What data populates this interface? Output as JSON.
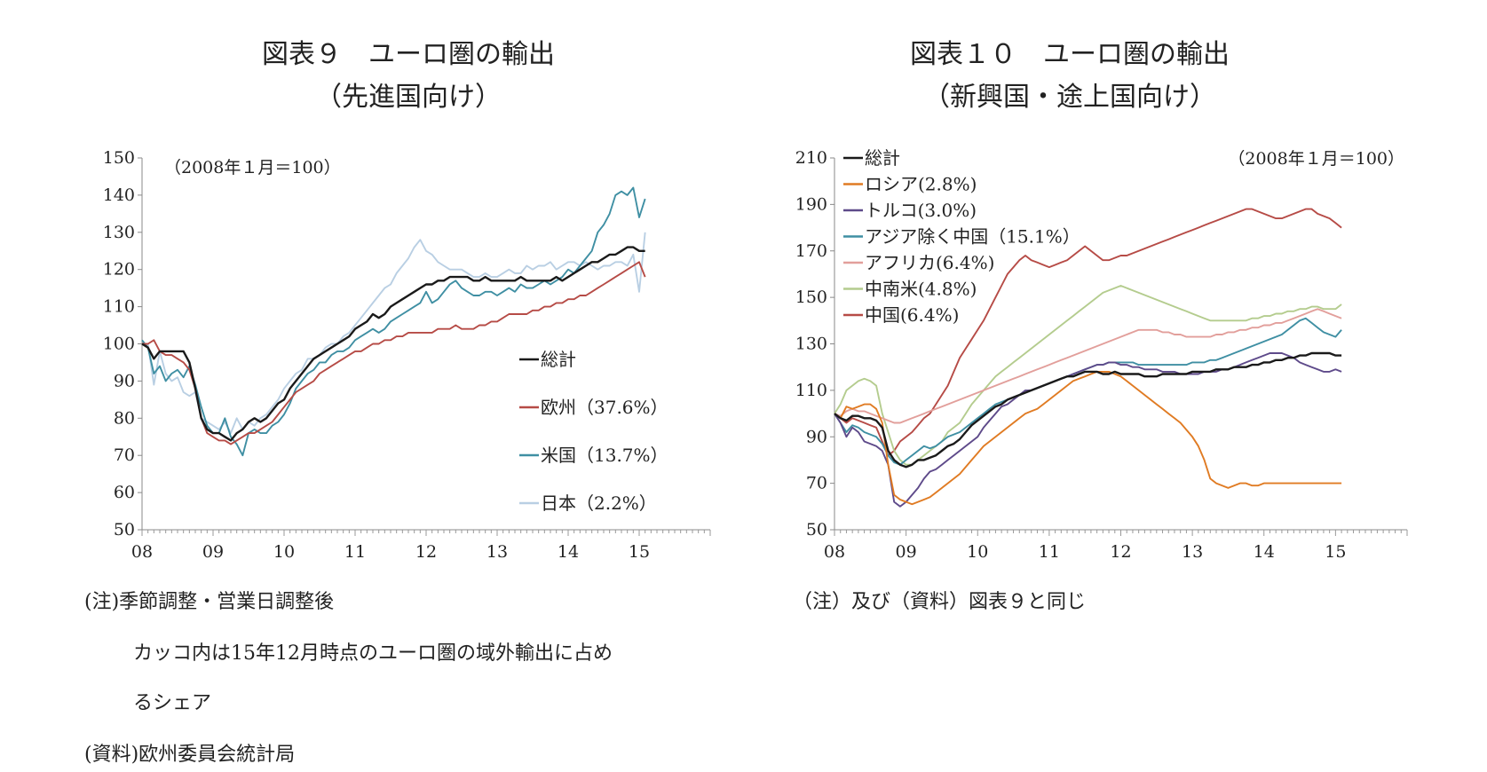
{
  "chart_data": [
    {
      "type": "line",
      "title": "図表９　ユーロ圏の輸出",
      "subtitle": "（先進国向け）",
      "annotation": "（2008年１月＝100）",
      "ylim": [
        50,
        150
      ],
      "yticks": [
        "150",
        "140",
        "130",
        "120",
        "110",
        "100",
        "90",
        "80",
        "70",
        "60",
        "50"
      ],
      "x_ticks": [
        "08",
        "09",
        "10",
        "11",
        "12",
        "13",
        "14",
        "15"
      ],
      "grid": false,
      "legend_position": "right",
      "series": [
        {
          "name": "総計",
          "color": "#1a1a1a",
          "values": [
            100,
            99,
            96,
            98,
            98,
            98,
            98,
            98,
            95,
            88,
            80,
            77,
            76,
            76,
            75,
            74,
            76,
            77,
            79,
            80,
            79,
            80,
            82,
            84,
            85,
            88,
            90,
            92,
            94,
            96,
            97,
            98,
            99,
            100,
            101,
            102,
            104,
            105,
            106,
            108,
            107,
            108,
            110,
            111,
            112,
            113,
            114,
            115,
            116,
            116,
            117,
            117,
            118,
            118,
            118,
            118,
            117,
            117,
            118,
            117,
            117,
            117,
            117,
            117,
            118,
            117,
            117,
            117,
            117,
            117,
            118,
            117,
            118,
            119,
            120,
            121,
            122,
            122,
            123,
            124,
            124,
            125,
            126,
            126,
            125,
            125
          ]
        },
        {
          "name": "欧州（37.6%）",
          "color": "#b64b46",
          "values": [
            100,
            100,
            101,
            98,
            97,
            97,
            96,
            95,
            93,
            88,
            80,
            76,
            75,
            74,
            74,
            73,
            74,
            75,
            76,
            76,
            77,
            78,
            79,
            81,
            83,
            85,
            87,
            88,
            89,
            90,
            92,
            93,
            94,
            95,
            96,
            97,
            98,
            98,
            99,
            100,
            100,
            101,
            101,
            102,
            102,
            103,
            103,
            103,
            103,
            103,
            104,
            104,
            104,
            105,
            104,
            104,
            104,
            105,
            105,
            106,
            106,
            107,
            108,
            108,
            108,
            108,
            109,
            109,
            110,
            110,
            111,
            111,
            112,
            112,
            113,
            113,
            114,
            115,
            116,
            117,
            118,
            119,
            120,
            121,
            122,
            118
          ]
        },
        {
          "name": "米国（13.7%）",
          "color": "#3f8fa3",
          "values": [
            101,
            99,
            92,
            94,
            90,
            92,
            93,
            91,
            94,
            89,
            83,
            78,
            76,
            76,
            80,
            75,
            73,
            70,
            76,
            77,
            76,
            76,
            78,
            79,
            81,
            84,
            88,
            90,
            92,
            93,
            95,
            95,
            97,
            98,
            98,
            99,
            101,
            102,
            103,
            104,
            103,
            104,
            106,
            107,
            108,
            109,
            110,
            111,
            114,
            111,
            112,
            114,
            116,
            117,
            115,
            114,
            113,
            113,
            114,
            114,
            113,
            114,
            115,
            114,
            116,
            115,
            115,
            116,
            117,
            116,
            117,
            118,
            120,
            119,
            121,
            123,
            125,
            130,
            132,
            135,
            140,
            141,
            140,
            142,
            134,
            139
          ]
        },
        {
          "name": "日本（2.2%）",
          "color": "#b9cfe3",
          "values": [
            100,
            100,
            89,
            98,
            92,
            90,
            91,
            87,
            86,
            87,
            80,
            79,
            78,
            77,
            79,
            76,
            80,
            77,
            79,
            78,
            80,
            81,
            83,
            85,
            88,
            90,
            92,
            93,
            96,
            96,
            97,
            99,
            100,
            100,
            102,
            103,
            105,
            107,
            109,
            111,
            113,
            115,
            116,
            119,
            121,
            123,
            126,
            128,
            125,
            124,
            122,
            121,
            120,
            120,
            120,
            119,
            118,
            118,
            119,
            118,
            118,
            119,
            120,
            119,
            119,
            121,
            120,
            121,
            121,
            122,
            120,
            121,
            122,
            122,
            121,
            122,
            121,
            120,
            121,
            121,
            122,
            122,
            121,
            124,
            114,
            130
          ]
        }
      ]
    },
    {
      "type": "line",
      "title": "図表１０　ユーロ圏の輸出",
      "subtitle": "（新興国・途上国向け）",
      "annotation": "（2008年１月＝100）",
      "ylim": [
        50,
        210
      ],
      "yticks": [
        "210",
        "190",
        "170",
        "150",
        "130",
        "110",
        "90",
        "70",
        "50"
      ],
      "x_ticks": [
        "08",
        "09",
        "10",
        "11",
        "12",
        "13",
        "14",
        "15"
      ],
      "grid": false,
      "legend_position": "top-left",
      "series": [
        {
          "name": "総計",
          "color": "#1a1a1a",
          "values": [
            100,
            98,
            97,
            99,
            99,
            98,
            98,
            97,
            94,
            84,
            80,
            78,
            77,
            78,
            80,
            80,
            81,
            82,
            84,
            86,
            87,
            89,
            92,
            95,
            97,
            99,
            101,
            103,
            104,
            106,
            107,
            108,
            109,
            110,
            111,
            112,
            113,
            114,
            115,
            116,
            116,
            117,
            118,
            118,
            118,
            117,
            117,
            118,
            117,
            117,
            117,
            117,
            116,
            116,
            116,
            117,
            117,
            117,
            117,
            117,
            118,
            118,
            118,
            118,
            119,
            119,
            119,
            120,
            120,
            120,
            121,
            121,
            122,
            122,
            123,
            123,
            124,
            124,
            125,
            125,
            126,
            126,
            126,
            126,
            125,
            125
          ]
        },
        {
          "name": "ロシア(2.8%)",
          "color": "#e07b23",
          "values": [
            100,
            98,
            103,
            102,
            103,
            104,
            104,
            102,
            96,
            78,
            65,
            63,
            62,
            61,
            62,
            63,
            64,
            66,
            68,
            70,
            72,
            74,
            77,
            80,
            83,
            86,
            88,
            90,
            92,
            94,
            96,
            98,
            100,
            101,
            102,
            104,
            106,
            108,
            110,
            112,
            114,
            115,
            116,
            117,
            118,
            118,
            118,
            117,
            116,
            114,
            112,
            110,
            108,
            106,
            104,
            102,
            100,
            98,
            96,
            93,
            90,
            86,
            80,
            72,
            70,
            69,
            68,
            69,
            70,
            70,
            69,
            69,
            70,
            70,
            70,
            70,
            70,
            70,
            70,
            70,
            70,
            70,
            70,
            70,
            70,
            70
          ]
        },
        {
          "name": "トルコ(3.0%)",
          "color": "#5e4a8a",
          "values": [
            100,
            96,
            90,
            94,
            92,
            88,
            87,
            86,
            84,
            78,
            62,
            60,
            62,
            65,
            68,
            72,
            75,
            76,
            78,
            80,
            82,
            84,
            86,
            88,
            90,
            94,
            97,
            100,
            103,
            104,
            106,
            108,
            110,
            110,
            111,
            112,
            113,
            114,
            115,
            116,
            117,
            118,
            119,
            120,
            121,
            121,
            122,
            122,
            121,
            121,
            120,
            120,
            119,
            119,
            119,
            118,
            118,
            118,
            117,
            117,
            117,
            117,
            118,
            118,
            118,
            119,
            119,
            120,
            121,
            122,
            123,
            124,
            125,
            126,
            126,
            126,
            125,
            124,
            122,
            121,
            120,
            119,
            118,
            118,
            119,
            118
          ]
        },
        {
          "name": "アジア除く中国（15.1%）",
          "color": "#3f8fa3",
          "values": [
            100,
            96,
            92,
            95,
            94,
            92,
            91,
            90,
            87,
            82,
            79,
            78,
            80,
            82,
            84,
            86,
            85,
            86,
            88,
            90,
            91,
            92,
            94,
            96,
            98,
            100,
            102,
            104,
            105,
            106,
            107,
            108,
            109,
            110,
            111,
            112,
            113,
            114,
            115,
            116,
            117,
            118,
            119,
            120,
            121,
            121,
            122,
            122,
            122,
            122,
            122,
            121,
            121,
            121,
            121,
            121,
            121,
            121,
            121,
            121,
            122,
            122,
            122,
            123,
            123,
            124,
            125,
            126,
            127,
            128,
            129,
            130,
            131,
            132,
            133,
            134,
            136,
            138,
            140,
            141,
            139,
            137,
            135,
            134,
            133,
            136
          ]
        },
        {
          "name": "アフリカ(6.4%)",
          "color": "#e29f9b",
          "values": [
            100,
            99,
            101,
            102,
            101,
            101,
            100,
            99,
            98,
            97,
            96,
            96,
            97,
            98,
            99,
            100,
            101,
            102,
            103,
            104,
            105,
            106,
            107,
            108,
            109,
            110,
            111,
            112,
            113,
            114,
            115,
            116,
            117,
            118,
            119,
            120,
            121,
            122,
            123,
            124,
            125,
            126,
            127,
            128,
            129,
            130,
            131,
            132,
            133,
            134,
            135,
            136,
            136,
            136,
            136,
            135,
            135,
            134,
            134,
            133,
            133,
            133,
            133,
            133,
            134,
            134,
            135,
            135,
            136,
            136,
            137,
            137,
            138,
            138,
            139,
            139,
            140,
            141,
            142,
            143,
            144,
            145,
            144,
            143,
            142,
            141
          ]
        },
        {
          "name": "中南米(4.8%)",
          "color": "#b4cc8e",
          "values": [
            100,
            104,
            110,
            112,
            114,
            115,
            114,
            112,
            100,
            92,
            84,
            80,
            78,
            78,
            80,
            82,
            84,
            86,
            88,
            92,
            94,
            96,
            100,
            104,
            107,
            110,
            113,
            116,
            118,
            120,
            122,
            124,
            126,
            128,
            130,
            132,
            134,
            136,
            138,
            140,
            142,
            144,
            146,
            148,
            150,
            152,
            153,
            154,
            155,
            154,
            153,
            152,
            151,
            150,
            149,
            148,
            147,
            146,
            145,
            144,
            143,
            142,
            141,
            140,
            140,
            140,
            140,
            140,
            140,
            140,
            141,
            141,
            142,
            142,
            143,
            143,
            144,
            144,
            145,
            145,
            146,
            146,
            145,
            145,
            145,
            147
          ]
        },
        {
          "name": "中国(6.4%)",
          "color": "#b64b46",
          "values": [
            100,
            98,
            96,
            98,
            97,
            96,
            95,
            94,
            88,
            82,
            84,
            88,
            90,
            92,
            95,
            98,
            100,
            104,
            108,
            112,
            118,
            124,
            128,
            132,
            136,
            140,
            145,
            150,
            155,
            160,
            163,
            166,
            168,
            166,
            165,
            164,
            163,
            164,
            165,
            166,
            168,
            170,
            172,
            170,
            168,
            166,
            166,
            167,
            168,
            168,
            169,
            170,
            171,
            172,
            173,
            174,
            175,
            176,
            177,
            178,
            179,
            180,
            181,
            182,
            183,
            184,
            185,
            186,
            187,
            188,
            188,
            187,
            186,
            185,
            184,
            184,
            185,
            186,
            187,
            188,
            188,
            186,
            185,
            184,
            182,
            180
          ]
        }
      ]
    }
  ],
  "notes_left": {
    "line1": "(注)季節調整・営業日調整後",
    "line2": "カッコ内は15年12月時点のユーロ圏の域外輸出に占め",
    "line3": "るシェア",
    "line4": "(資料)欧州委員会統計局"
  },
  "notes_right": {
    "line1": "（注）及び（資料）図表９と同じ"
  }
}
